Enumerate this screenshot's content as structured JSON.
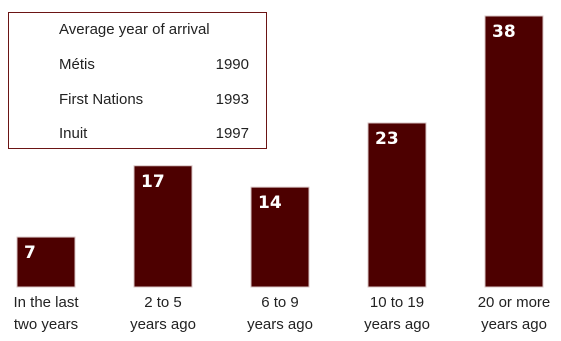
{
  "chart_data": {
    "type": "bar",
    "categories": [
      [
        "In the last",
        "two years"
      ],
      [
        "2 to 5",
        "years ago"
      ],
      [
        "6 to 9",
        "years ago"
      ],
      [
        "10 to 19",
        "years ago"
      ],
      [
        "20 or more",
        "years ago"
      ]
    ],
    "values": [
      7,
      17,
      14,
      23,
      38
    ],
    "ylim": [
      0,
      38
    ],
    "grid": false,
    "bar_color": "#4d0000",
    "bar_outline_color": "#d8c4c4",
    "label_color": "#ffffff"
  },
  "legend_table": {
    "title": "Average year of arrival",
    "rows": [
      {
        "label": "Métis",
        "year": "1990"
      },
      {
        "label": "First Nations",
        "year": "1993"
      },
      {
        "label": "Inuit",
        "year": "1997"
      }
    ],
    "border_color": "#6b1414"
  }
}
